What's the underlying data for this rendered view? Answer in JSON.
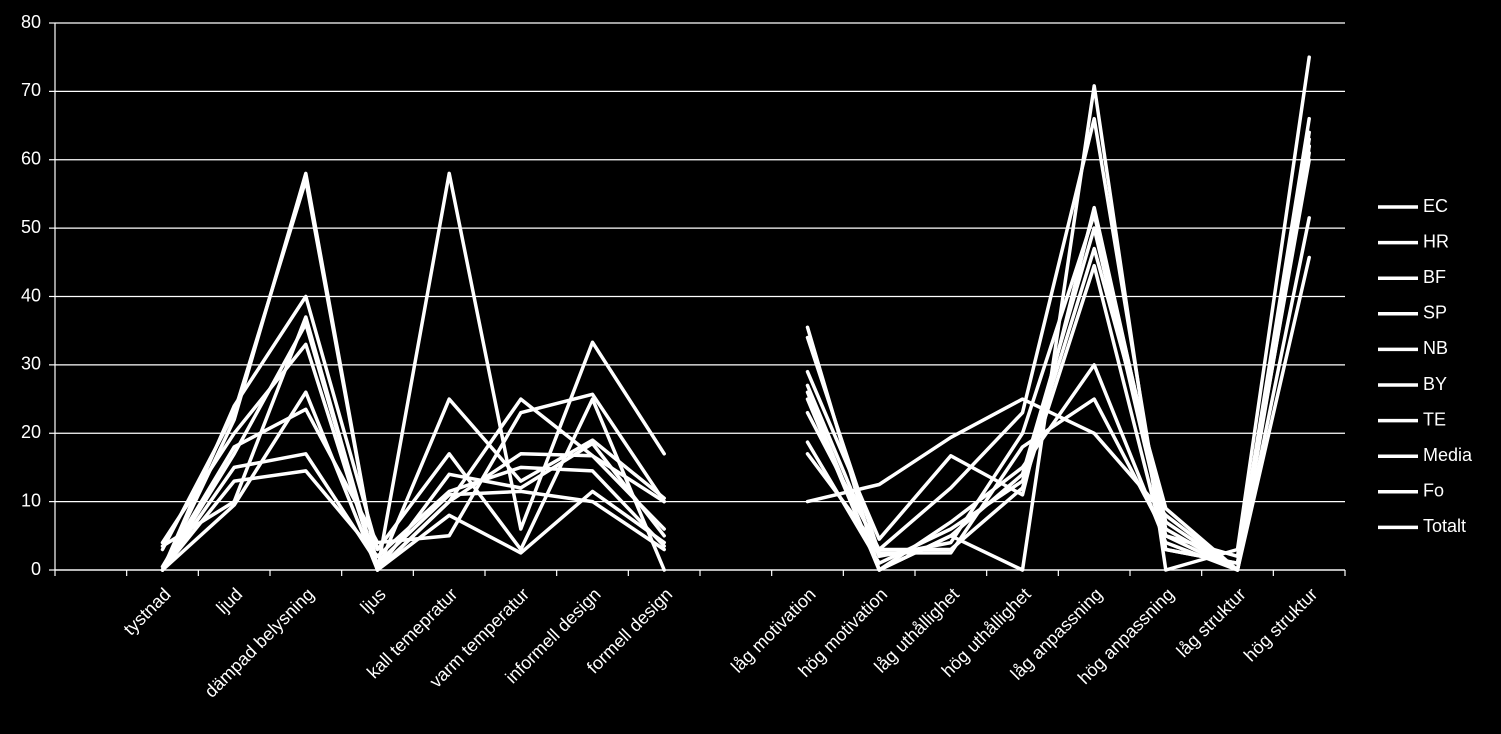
{
  "chart_data": {
    "type": "line",
    "categories": [
      null,
      "tystnad",
      "ljud",
      "dämpad belysning",
      "ljus",
      "kall temepratur",
      "varm temperatur",
      "informell design",
      "formell design",
      null,
      "låg motivation",
      "hög motivation",
      "låg uthållighet",
      "hög uthållighet",
      "låg anpassning",
      "hög anpassning",
      "låg struktur",
      "hög struktur"
    ],
    "series": [
      {
        "name": "EC",
        "color": "#ffffff",
        "values": [
          null,
          0,
          22,
          58,
          0,
          58,
          6,
          33.3,
          17,
          null,
          10,
          12.5,
          19.4,
          25,
          20,
          8,
          0,
          45.7
        ]
      },
      {
        "name": "HR",
        "color": "#ffffff",
        "values": [
          null,
          3.5,
          10,
          37,
          0,
          25,
          13,
          19,
          10.5,
          null,
          35.5,
          0,
          5,
          0,
          70.8,
          0,
          3,
          75
        ]
      },
      {
        "name": "BF",
        "color": "#ffffff",
        "values": [
          null,
          0,
          24,
          40,
          3,
          17,
          3,
          25,
          0,
          null,
          17,
          3,
          12,
          23,
          66,
          3,
          1,
          66
        ]
      },
      {
        "name": "SP",
        "color": "#ffffff",
        "values": [
          null,
          4,
          20,
          33,
          0,
          10,
          25,
          16.7,
          6,
          null,
          29,
          4.5,
          16.7,
          11,
          53,
          6,
          0,
          51.5
        ]
      },
      {
        "name": "NB",
        "color": "#ffffff",
        "values": [
          null,
          0,
          9.5,
          26,
          0,
          8,
          2.5,
          11.5,
          4,
          null,
          25,
          0,
          7,
          15,
          30,
          4,
          0,
          63
        ]
      },
      {
        "name": "BY",
        "color": "#ffffff",
        "values": [
          null,
          0,
          15,
          17,
          1,
          11,
          11.5,
          10,
          3,
          null,
          34,
          2.5,
          2.5,
          18,
          25,
          5,
          2,
          62
        ]
      },
      {
        "name": "TE",
        "color": "#ffffff",
        "values": [
          null,
          0.5,
          18,
          23.5,
          4,
          5,
          23,
          25.7,
          10,
          null,
          18.7,
          1,
          6,
          13,
          47,
          9,
          0,
          64
        ]
      },
      {
        "name": "Media",
        "color": "#ffffff",
        "values": [
          null,
          0,
          13,
          14.5,
          2,
          11.5,
          15,
          14.5,
          3.5,
          null,
          23,
          3,
          3,
          12,
          44.5,
          3,
          1,
          60
        ]
      },
      {
        "name": "Fo",
        "color": "#ffffff",
        "values": [
          null,
          3,
          23,
          57,
          0,
          14,
          12,
          18.5,
          5,
          null,
          27,
          2,
          4,
          20,
          52,
          7,
          0,
          61
        ]
      },
      {
        "name": "Totalt",
        "color": "#ffffff",
        "values": [
          null,
          0,
          17,
          36,
          0,
          10,
          17,
          16.7,
          10,
          null,
          26,
          0,
          5,
          14,
          50,
          5,
          0,
          62
        ]
      }
    ],
    "ylim": [
      0,
      80
    ],
    "yticks": [
      0,
      10,
      20,
      30,
      40,
      50,
      60,
      70,
      80
    ],
    "grid": true,
    "legend": "right"
  }
}
